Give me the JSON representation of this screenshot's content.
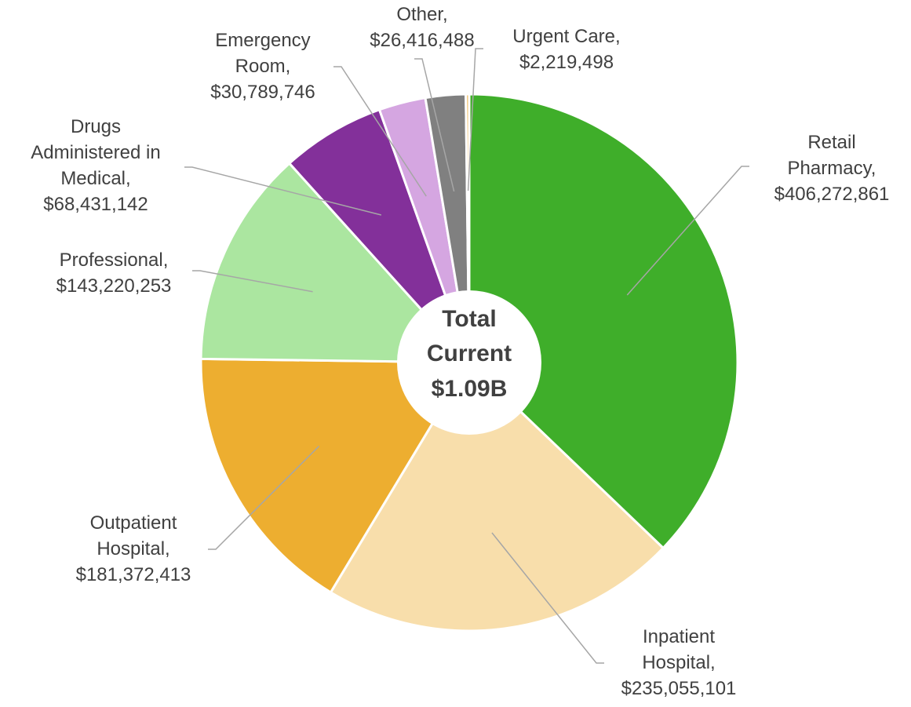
{
  "chart_data": {
    "type": "pie",
    "categories": [
      "Retail Pharmacy,",
      "Inpatient Hospital,",
      "Outpatient Hospital,",
      "Professional,",
      "Drugs Administered in Medical,",
      "Emergency Room,",
      "Other,",
      "Urgent Care,"
    ],
    "values": [
      406272861,
      235055101,
      181372413,
      143220253,
      68431142,
      30789746,
      26416488,
      2219498
    ],
    "value_labels": [
      "$406,272,861",
      "$235,055,101",
      "$181,372,413",
      "$143,220,253",
      "$68,431,142",
      "$30,789,746",
      "$26,416,488",
      "$2,219,498"
    ],
    "colors": [
      "#3fae2a",
      "#f8deab",
      "#edae30",
      "#abe6a0",
      "#83309a",
      "#d5a6e1",
      "#808080",
      "#f2c26b"
    ],
    "center_label": [
      "Total",
      "Current"
    ],
    "center_value": "$1.09B"
  }
}
